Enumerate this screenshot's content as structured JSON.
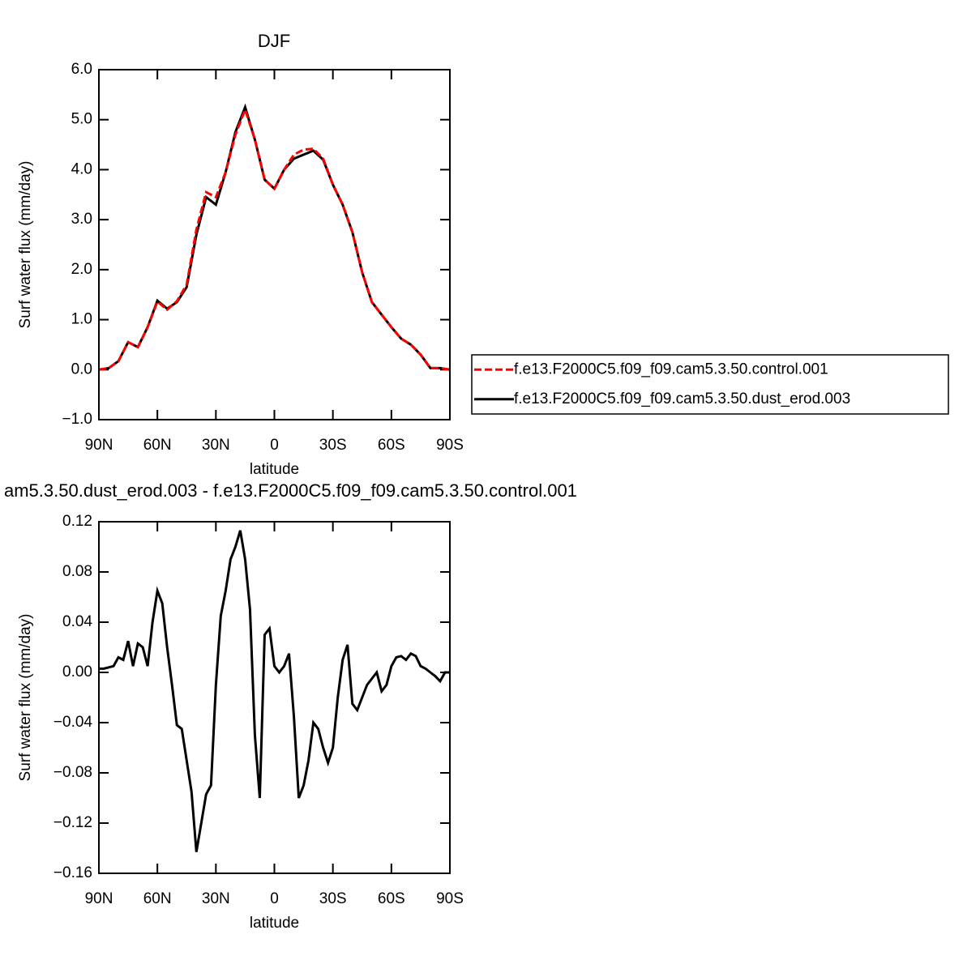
{
  "chart_data": [
    {
      "type": "line",
      "title": "DJF",
      "ylabel": "Surf water flux (mm/day)",
      "xlabel": "latitude",
      "xlim": [
        90,
        -90
      ],
      "xticks": [
        {
          "value": 90,
          "label": "90N"
        },
        {
          "value": 60,
          "label": "60N"
        },
        {
          "value": 30,
          "label": "30N"
        },
        0,
        {
          "value": -30,
          "label": "30S"
        },
        {
          "value": -60,
          "label": "60S"
        },
        {
          "value": -90,
          "label": "90S"
        }
      ],
      "ylim": [
        -1,
        6
      ],
      "yticks": [
        {
          "value": -1,
          "label": "−1.0"
        },
        {
          "value": 0,
          "label": "0.0"
        },
        {
          "value": 1,
          "label": "1.0"
        },
        {
          "value": 2,
          "label": "2.0"
        },
        {
          "value": 3,
          "label": "3.0"
        },
        {
          "value": 4,
          "label": "4.0"
        },
        {
          "value": 5,
          "label": "5.0"
        },
        {
          "value": 6,
          "label": "6.0"
        }
      ],
      "x": [
        90,
        85,
        80,
        75,
        70,
        65,
        60,
        55,
        50,
        45,
        40,
        35,
        30,
        25,
        20,
        15,
        10,
        5,
        0,
        -5,
        -10,
        -15,
        -20,
        -25,
        -30,
        -35,
        -40,
        -45,
        -50,
        -55,
        -60,
        -65,
        -70,
        -75,
        -80,
        -85,
        -90
      ],
      "series": [
        {
          "name": "f.e13.F2000C5.f09_f09.cam5.3.50.control.001",
          "color": "#ff0000",
          "dash": true,
          "values": [
            0.0,
            0.03,
            0.17,
            0.55,
            0.45,
            0.85,
            1.36,
            1.2,
            1.37,
            1.7,
            2.8,
            3.55,
            3.45,
            3.95,
            4.7,
            5.2,
            4.6,
            3.8,
            3.62,
            4.0,
            4.3,
            4.4,
            4.42,
            4.22,
            3.7,
            3.3,
            2.75,
            1.95,
            1.35,
            1.1,
            0.85,
            0.62,
            0.5,
            0.3,
            0.03,
            0.03,
            0.0
          ]
        },
        {
          "name": "f.e13.F2000C5.f09_f09.cam5.3.50.dust_erod.003",
          "color": "#000000",
          "dash": false,
          "values": [
            0.0,
            0.03,
            0.17,
            0.55,
            0.45,
            0.85,
            1.38,
            1.22,
            1.35,
            1.65,
            2.7,
            3.45,
            3.3,
            3.95,
            4.75,
            5.25,
            4.6,
            3.8,
            3.62,
            4.0,
            4.22,
            4.3,
            4.38,
            4.2,
            3.7,
            3.3,
            2.75,
            1.95,
            1.35,
            1.1,
            0.85,
            0.62,
            0.5,
            0.3,
            0.03,
            0.03,
            0.0
          ]
        }
      ],
      "legend": "right"
    },
    {
      "type": "line",
      "title": "am5.3.50.dust_erod.003 - f.e13.F2000C5.f09_f09.cam5.3.50.control.001",
      "ylabel": "Surf water flux (mm/day)",
      "xlabel": "latitude",
      "xlim": [
        90,
        -90
      ],
      "xticks": [
        {
          "value": 90,
          "label": "90N"
        },
        {
          "value": 60,
          "label": "60N"
        },
        {
          "value": 30,
          "label": "30N"
        },
        0,
        {
          "value": -30,
          "label": "30S"
        },
        {
          "value": -60,
          "label": "60S"
        },
        {
          "value": -90,
          "label": "90S"
        }
      ],
      "ylim": [
        -0.16,
        0.12
      ],
      "yticks": [
        {
          "value": -0.16,
          "label": "−0.16"
        },
        {
          "value": -0.12,
          "label": "−0.12"
        },
        {
          "value": -0.08,
          "label": "−0.08"
        },
        {
          "value": -0.04,
          "label": "−0.04"
        },
        {
          "value": 0,
          "label": "0.00"
        },
        0.04,
        0.08,
        0.12
      ],
      "x": [
        90,
        87.5,
        85,
        82.5,
        80,
        77.5,
        75,
        72.5,
        70,
        67.5,
        65,
        62.5,
        60,
        57.5,
        55,
        52.5,
        50,
        47.5,
        45,
        42.5,
        40,
        37.5,
        35,
        32.5,
        30,
        27.5,
        25,
        22.5,
        20,
        17.5,
        15,
        12.5,
        10,
        7.5,
        5,
        2.5,
        0,
        -2.5,
        -5,
        -7.5,
        -10,
        -12.5,
        -15,
        -17.5,
        -20,
        -22.5,
        -25,
        -27.5,
        -30,
        -32.5,
        -35,
        -37.5,
        -40,
        -42.5,
        -45,
        -47.5,
        -50,
        -52.5,
        -55,
        -57.5,
        -60,
        -62.5,
        -65,
        -67.5,
        -70,
        -72.5,
        -75,
        -77.5,
        -80,
        -82.5,
        -85,
        -87.5,
        -90
      ],
      "series": [
        {
          "color": "#000000",
          "dash": false,
          "values": [
            0.003,
            0.003,
            0.004,
            0.005,
            0.012,
            0.01,
            0.025,
            0.005,
            0.023,
            0.02,
            0.005,
            0.04,
            0.065,
            0.055,
            0.02,
            -0.01,
            -0.042,
            -0.045,
            -0.07,
            -0.095,
            -0.143,
            -0.12,
            -0.097,
            -0.09,
            -0.01,
            0.045,
            0.065,
            0.09,
            0.1,
            0.113,
            0.09,
            0.05,
            -0.05,
            -0.1,
            0.03,
            0.035,
            0.005,
            0.0,
            0.005,
            0.015,
            -0.035,
            -0.1,
            -0.09,
            -0.07,
            -0.04,
            -0.045,
            -0.06,
            -0.072,
            -0.06,
            -0.02,
            0.01,
            0.022,
            -0.025,
            -0.03,
            -0.02,
            -0.01,
            -0.005,
            0.0,
            -0.015,
            -0.01,
            0.005,
            0.012,
            0.013,
            0.01,
            0.015,
            0.013,
            0.005,
            0.003,
            0.0,
            -0.003,
            -0.007,
            0.0,
            0.0
          ]
        }
      ]
    }
  ]
}
